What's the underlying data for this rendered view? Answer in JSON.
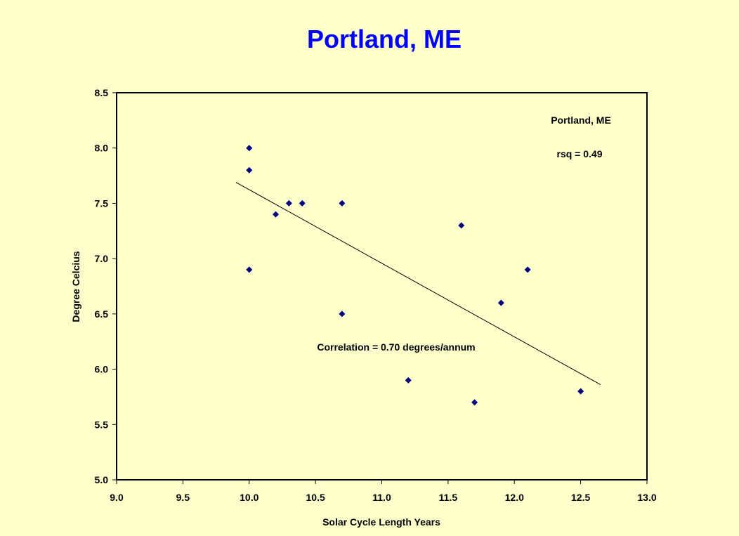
{
  "chart_data": {
    "type": "scatter",
    "title": "Portland, ME",
    "xlabel": "Solar Cycle Length Years",
    "ylabel": "Degree Celcius",
    "xlim": [
      9.0,
      13.0
    ],
    "ylim": [
      5.0,
      8.5
    ],
    "xticks": [
      "9.0",
      "9.5",
      "10.0",
      "10.5",
      "11.0",
      "11.5",
      "12.0",
      "12.5",
      "13.0"
    ],
    "yticks": [
      "5.0",
      "5.5",
      "6.0",
      "6.5",
      "7.0",
      "7.5",
      "8.0",
      "8.5"
    ],
    "grid": false,
    "series": [
      {
        "x": [
          10.0,
          10.0,
          10.0,
          10.2,
          10.3,
          10.4,
          10.7,
          10.7,
          11.2,
          11.6,
          11.7,
          11.9,
          12.1,
          12.5
        ],
        "y": [
          8.0,
          7.8,
          6.9,
          7.4,
          7.5,
          7.5,
          7.5,
          6.5,
          5.9,
          7.3,
          5.7,
          6.6,
          6.9,
          5.8
        ],
        "color": "#000080",
        "marker": "diamond"
      }
    ],
    "trendline": {
      "x": [
        9.9,
        12.65
      ],
      "y": [
        7.69,
        5.86
      ],
      "color": "#000000"
    },
    "annotations": {
      "legend_title": "Portland, ME",
      "rsq": "rsq = 0.49",
      "correlation": "Correlation = 0.70 degrees/annum"
    }
  },
  "colors": {
    "background": "#FFFFCC",
    "title": "#0000FF",
    "plot_area": "#FFFFCC",
    "marker": "#000080"
  }
}
